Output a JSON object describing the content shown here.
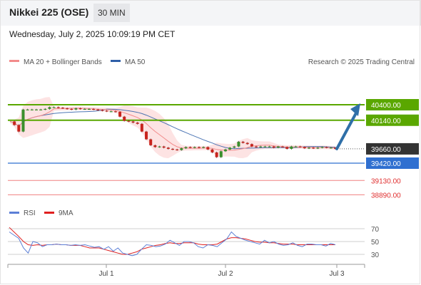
{
  "header": {
    "instrument": "Nikkei 225 (OSE)",
    "timeframe": "30 MIN",
    "timestamp": "Wednesday, July 2, 2025 10:09:19 PM CET"
  },
  "legend": {
    "ma20_label": "MA 20 + Bollinger Bands",
    "ma50_label": "MA 50",
    "watermark": "Research © 2025 Trading Central",
    "rsi_label": "RSI",
    "ma9_label": "9MA"
  },
  "colors": {
    "ma20": "#f28b8b",
    "bollinger_fill": "#fde3e3",
    "ma50": "#2f5fa8",
    "resistance": "#5aa700",
    "support": "#2f6fd0",
    "target_line": "#f08080",
    "price_tag": "#333333",
    "arrow": "#2f6fa8",
    "rsi": "#5c7fd6",
    "ma9": "#e02020"
  },
  "chart_data": {
    "type": "candlestick",
    "title": "Nikkei 225 (OSE)",
    "timeframe": "30 MIN",
    "x_ticks": [
      "Jul 1",
      "Jul 2",
      "Jul 3"
    ],
    "ylim": [
      38800,
      40600
    ],
    "last_price": 39660,
    "levels": [
      {
        "value": 40400,
        "label": "40400.00",
        "kind": "resistance"
      },
      {
        "value": 40140,
        "label": "40140.00",
        "kind": "resistance"
      },
      {
        "value": 39660,
        "label": "39660.00",
        "kind": "last"
      },
      {
        "value": 39420,
        "label": "39420.00",
        "kind": "support"
      },
      {
        "value": 39130,
        "label": "39130.00",
        "kind": "target"
      },
      {
        "value": 38890,
        "label": "38890.00",
        "kind": "target"
      }
    ],
    "forecast_arrow": {
      "from": 39660,
      "to": 40400
    },
    "close_series": [
      40120,
      40060,
      39950,
      40320,
      40320,
      40320,
      40320,
      40320,
      40330,
      40360,
      40360,
      40350,
      40340,
      40330,
      40320,
      40340,
      40330,
      40330,
      40330,
      40320,
      40310,
      40300,
      40290,
      40290,
      40280,
      40200,
      40130,
      40120,
      40100,
      40080,
      39950,
      39820,
      39720,
      39690,
      39700,
      39680,
      39660,
      39650,
      39640,
      39670,
      39690,
      39680,
      39690,
      39680,
      39690,
      39650,
      39600,
      39520,
      39620,
      39650,
      39680,
      39700,
      39780,
      39760,
      39740,
      39700,
      39690,
      39700,
      39700,
      39700,
      39680,
      39700,
      39690,
      39660,
      39700,
      39700,
      39690,
      39670,
      39680,
      39670,
      39680,
      39690,
      39680,
      39680,
      39660
    ],
    "rsi": {
      "levels": [
        70,
        50,
        30
      ],
      "values": [
        65,
        60,
        55,
        40,
        32,
        50,
        48,
        42,
        45,
        45,
        46,
        45,
        45,
        44,
        45,
        44,
        45,
        43,
        41,
        42,
        38,
        42,
        35,
        40,
        32,
        30,
        28,
        30,
        38,
        45,
        44,
        42,
        43,
        46,
        52,
        48,
        44,
        50,
        50,
        48,
        42,
        40,
        45,
        44,
        42,
        48,
        54,
        65,
        58,
        55,
        52,
        50,
        48,
        46,
        52,
        48,
        50,
        46,
        44,
        45,
        48,
        44,
        42,
        46,
        46,
        45,
        45,
        43,
        47,
        45
      ],
      "ma9": [
        72,
        65,
        58,
        50,
        45,
        44,
        45,
        44,
        45,
        45,
        46,
        45,
        45,
        44,
        44,
        44,
        42,
        40,
        40,
        40,
        38,
        36,
        34,
        32,
        30,
        30,
        32,
        34,
        38,
        40,
        42,
        44,
        45,
        47,
        48,
        47,
        47,
        48,
        48,
        48,
        46,
        45,
        45,
        45,
        46,
        50,
        54,
        56,
        56,
        55,
        54,
        52,
        50,
        49,
        49,
        48,
        48,
        47,
        46,
        46,
        46,
        45,
        45,
        45,
        45,
        45,
        45,
        45,
        45,
        45
      ]
    }
  }
}
